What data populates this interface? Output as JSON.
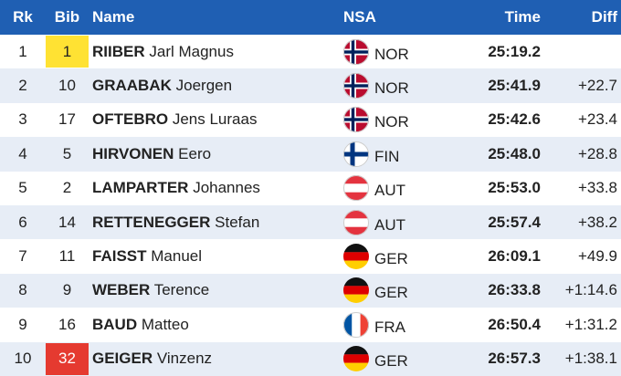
{
  "header": {
    "columns": [
      "Rk",
      "Bib",
      "Name",
      "NSA",
      "Time",
      "Diff"
    ]
  },
  "rows": [
    {
      "rank": 1,
      "bib": 1,
      "surname": "RIIBER",
      "given_name": "Jarl Magnus",
      "nsa": "NOR",
      "time": "25:19.2"
    },
    {
      "rank": 2,
      "bib": 10,
      "surname": "GRAABAK",
      "given_name": "Joergen",
      "nsa": "NOR",
      "time": "25:41.9",
      "diff": "+22.7"
    },
    {
      "rank": 3,
      "bib": 17,
      "surname": "OFTEBRO",
      "given_name": "Jens Luraas",
      "nsa": "NOR",
      "time": "25:42.6",
      "diff": "+23.4"
    },
    {
      "rank": 4,
      "bib": 5,
      "surname": "HIRVONEN",
      "given_name": "Eero",
      "nsa": "FIN",
      "time": "25:48.0",
      "diff": "+28.8"
    },
    {
      "rank": 5,
      "bib": 2,
      "surname": "LAMPARTER",
      "given_name": "Johannes",
      "nsa": "AUT",
      "time": "25:53.0",
      "diff": "+33.8"
    },
    {
      "rank": 6,
      "bib": 14,
      "surname": "RETTENEGGER",
      "given_name": "Stefan",
      "nsa": "AUT",
      "time": "25:57.4",
      "diff": "+38.2"
    },
    {
      "rank": 7,
      "bib": 11,
      "surname": "FAISST",
      "given_name": "Manuel",
      "nsa": "GER",
      "time": "26:09.1",
      "diff": "+49.9"
    },
    {
      "rank": 8,
      "bib": 9,
      "surname": "WEBER",
      "given_name": "Terence",
      "nsa": "GER",
      "time": "26:33.8",
      "diff": "+1:14.6"
    },
    {
      "rank": 9,
      "bib": 16,
      "surname": "BAUD",
      "given_name": "Matteo",
      "nsa": "FRA",
      "time": "26:50.4",
      "diff": "+1:31.2"
    },
    {
      "rank": 10,
      "bib": 32,
      "surname": "GEIGER",
      "given_name": "Vinzenz",
      "nsa": "GER",
      "time": "26:57.3",
      "diff": "+1:38.1"
    }
  ]
}
